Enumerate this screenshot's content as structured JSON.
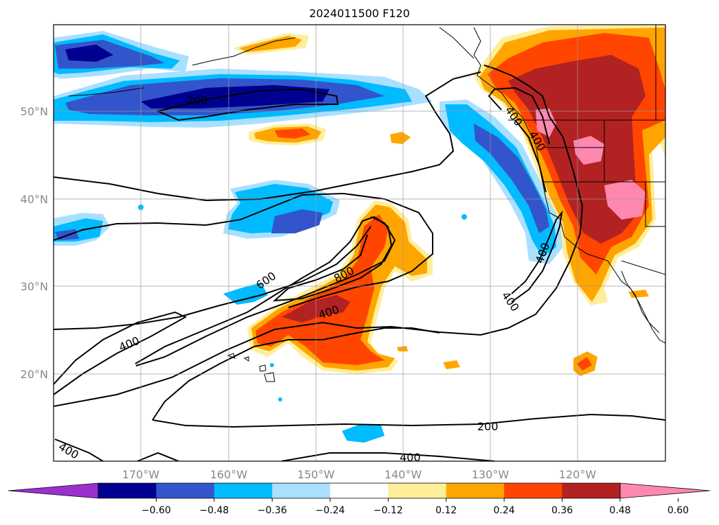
{
  "title": "2024011500 F120",
  "lat_labels": [
    "50°N",
    "40°N",
    "30°N",
    "20°N"
  ],
  "lon_labels": [
    "170°W",
    "160°W",
    "150°W",
    "140°W",
    "130°W",
    "120°W"
  ],
  "colorbar": {
    "colors": [
      "#9b30d0",
      "#000090",
      "#3355cc",
      "#00bbff",
      "#aae0ff",
      "#ffffff",
      "#ffee99",
      "#ffa500",
      "#ff4500",
      "#b22222",
      "#ff88b0"
    ],
    "tick_labels": [
      "−0.60",
      "−0.48",
      "−0.36",
      "−0.24",
      "−0.12",
      "0.12",
      "0.24",
      "0.36",
      "0.48",
      "0.60"
    ]
  },
  "contour_labels": [
    "200",
    "400",
    "600",
    "800",
    "400",
    "400",
    "400",
    "400",
    "400",
    "200",
    "400",
    "400"
  ]
}
